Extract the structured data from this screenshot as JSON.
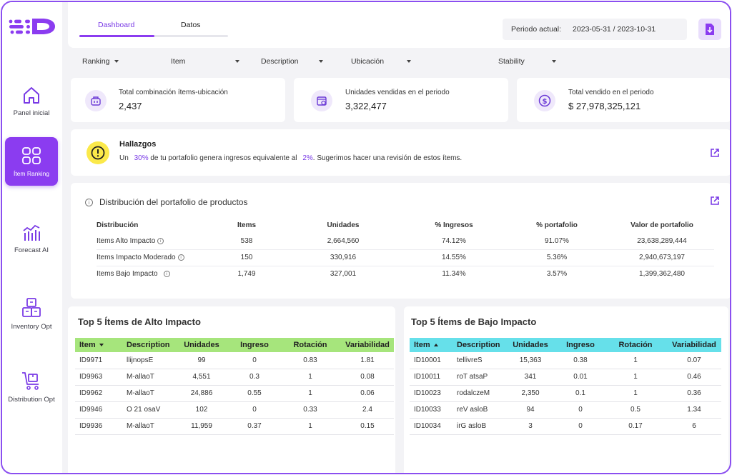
{
  "sidebar": {
    "items": [
      {
        "label": "Panel inicial",
        "icon": "home-icon"
      },
      {
        "label": "Ítem Ranking",
        "icon": "grid-icon"
      },
      {
        "label": "Forecast AI",
        "icon": "forecast-icon"
      },
      {
        "label": "Inventory Opt",
        "icon": "boxes-icon"
      },
      {
        "label": "Distribution Opt",
        "icon": "cart-icon"
      }
    ]
  },
  "header": {
    "tabs": [
      "Dashboard",
      "Datos"
    ],
    "period_label": "Periodo actual:",
    "period_value": "2023-05-31 / 2023-10-31"
  },
  "filters": [
    "Ranking",
    "Item",
    "Description",
    "Ubicación",
    "Stability"
  ],
  "kpis": [
    {
      "label": "Total combinación ítems-ubicación",
      "value": "2,437"
    },
    {
      "label": "Unidades vendidas en el periodo",
      "value": "3,322,477"
    },
    {
      "label": "Total vendido en el periodo",
      "value": "$ 27,978,325,121"
    }
  ],
  "findings": {
    "title": "Hallazgos",
    "t1": "Un",
    "p1": "30%",
    "t2": "de tu portafolio genera ingresos equivalente al",
    "p2": "2%",
    "t3": ". Sugerimos hacer una revisión de estos ítems."
  },
  "distribution": {
    "title": "Distribución del portafolio de productos",
    "headers": [
      "Distribución",
      "Items",
      "Unidades",
      "% Ingresos",
      "% portafolio",
      "Valor de portafolio"
    ],
    "rows": [
      [
        "Items Alto Impacto",
        "538",
        "2,664,560",
        "74.12%",
        "91.07%",
        "23,638,289,444"
      ],
      [
        "Items Impacto Moderado",
        "150",
        "330,916",
        "14.55%",
        "5.36%",
        "2,940,673,197"
      ],
      [
        "Items Bajo Impacto",
        "1,749",
        "327,001",
        "11.34%",
        "3.57%",
        "1,399,362,480"
      ]
    ]
  },
  "top_high": {
    "title": "Top 5 Ítems de Alto Impacto",
    "header_color": "#a6e57c",
    "headers": [
      "Item",
      "Description",
      "Unidades",
      "Ingreso",
      "Rotación",
      "Variabilidad"
    ],
    "rows": [
      [
        "ID9971",
        "llijnopsE",
        "99",
        "0",
        "0.83",
        "1.81"
      ],
      [
        "ID9963",
        "M-allaoT",
        "4,551",
        "0.3",
        "1",
        "0.08"
      ],
      [
        "ID9962",
        "M-allaoT",
        "24,886",
        "0.55",
        "1",
        "0.06"
      ],
      [
        "ID9946",
        "O 21 osaV",
        "102",
        "0",
        "0.33",
        "2.4"
      ],
      [
        "ID9936",
        "M-allaoT",
        "11,959",
        "0.37",
        "1",
        "0.15"
      ]
    ]
  },
  "top_low": {
    "title": "Top 5 Ítems de Bajo Impacto",
    "header_color": "#66e0ea",
    "headers": [
      "Item",
      "Description",
      "Unidades",
      "Ingreso",
      "Rotación",
      "Variabilidad"
    ],
    "rows": [
      [
        "ID10001",
        "tellivreS",
        "15,363",
        "0.38",
        "1",
        "0.07"
      ],
      [
        "ID10011",
        "roT atsaP",
        "341",
        "0.01",
        "1",
        "0.46"
      ],
      [
        "ID10023",
        "rodalczeM",
        "2,350",
        "0.1",
        "1",
        "0.36"
      ],
      [
        "ID10033",
        "reV asloB",
        "94",
        "0",
        "0.5",
        "1.34"
      ],
      [
        "ID10034",
        "irG asloB",
        "3",
        "0",
        "0.17",
        "6"
      ]
    ]
  },
  "colors": {
    "accent": "#8b3cf0",
    "frame": "#8b4ff0",
    "warning": "#fbe94a"
  }
}
